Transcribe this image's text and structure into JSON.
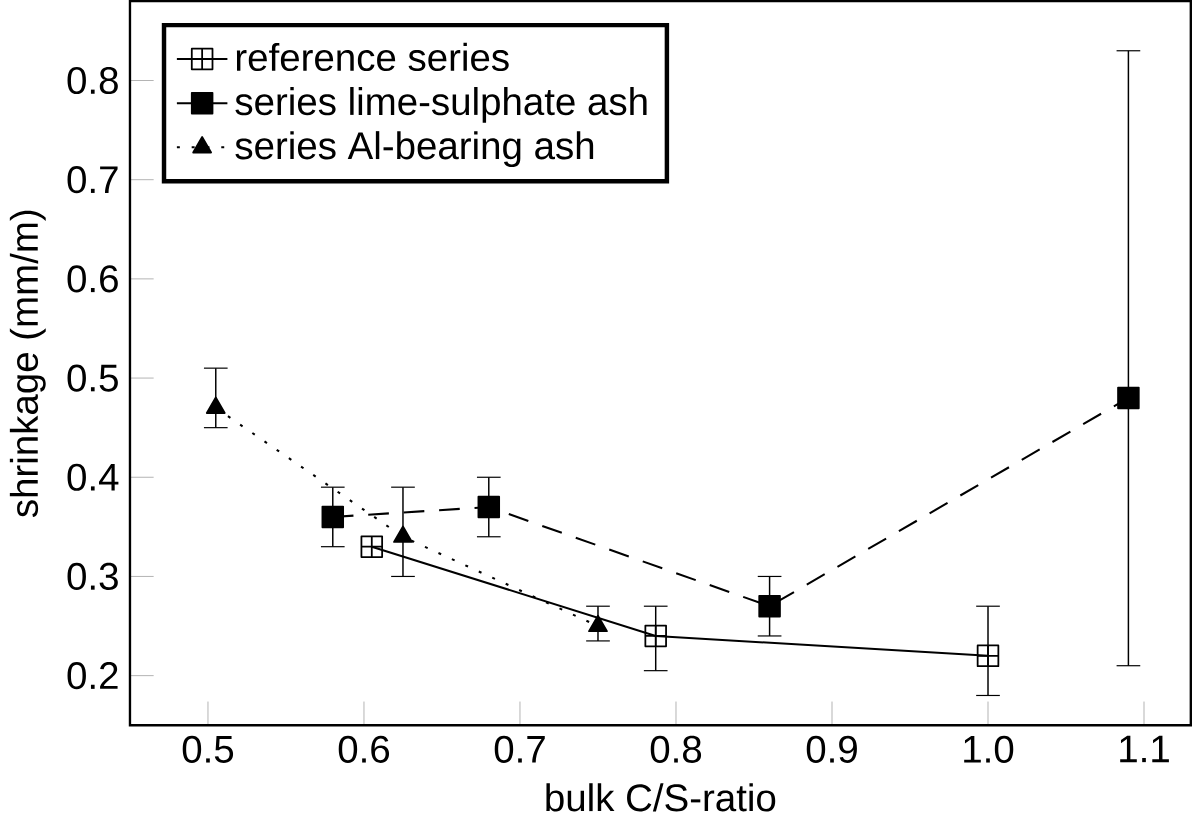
{
  "chart_data": {
    "type": "line",
    "xlabel": "bulk C/S-ratio",
    "ylabel": "shrinkage (mm/m)",
    "xlim": [
      0.45,
      1.13
    ],
    "ylim": [
      0.15,
      0.88
    ],
    "xticks": [
      0.5,
      0.6,
      0.7,
      0.8,
      0.9,
      {
        "value": 1.0,
        "label": "1.0"
      },
      1.1
    ],
    "yticks": [
      0.2,
      0.3,
      0.4,
      0.5,
      0.6,
      0.7,
      0.8
    ],
    "grid": false,
    "legend": "top left",
    "series": [
      {
        "name": "reference series",
        "color": "#000000",
        "marker": "cross",
        "line_style": "solid",
        "x": [
          0.605,
          0.787,
          1.0
        ],
        "values": [
          0.33,
          0.24,
          0.22
        ],
        "errors": [
          null,
          [
            0.205,
            0.27
          ],
          [
            0.18,
            0.27
          ]
        ]
      },
      {
        "name": "series lime-sulphate ash",
        "color": "#000000",
        "marker": "square",
        "line_style": "dashed",
        "x": [
          0.58,
          0.68,
          0.86,
          1.09
        ],
        "values": [
          0.36,
          0.37,
          0.27,
          0.48
        ],
        "errors": [
          [
            0.33,
            0.39
          ],
          [
            0.34,
            0.4
          ],
          [
            0.24,
            0.3
          ],
          [
            0.21,
            0.83
          ]
        ]
      },
      {
        "name": "series Al-bearing ash",
        "color": "#000000",
        "marker": "triangle",
        "line_style": "dotted",
        "x": [
          0.505,
          0.625,
          0.75
        ],
        "values": [
          0.47,
          0.34,
          0.25
        ],
        "errors": [
          [
            0.45,
            0.51
          ],
          [
            0.3,
            0.39
          ],
          [
            0.235,
            0.27
          ]
        ]
      }
    ]
  }
}
